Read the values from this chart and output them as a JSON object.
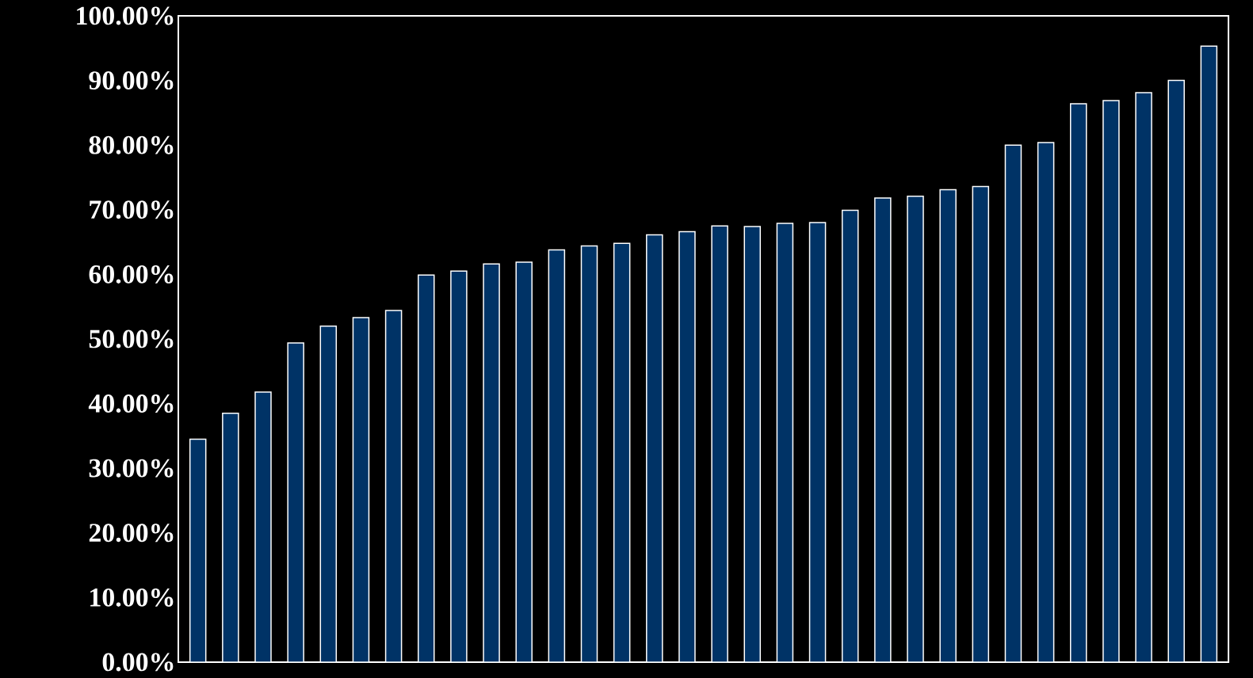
{
  "chart_data": {
    "type": "bar",
    "categories": [
      null,
      null,
      null,
      null,
      null,
      null,
      null,
      null,
      null,
      null,
      null,
      null,
      null,
      null,
      null,
      null,
      null,
      null,
      null,
      null,
      null,
      null,
      null,
      null,
      null,
      null,
      null,
      null,
      null,
      null,
      null,
      null
    ],
    "values": [
      34.5,
      38.5,
      41.8,
      49.4,
      52,
      53.3,
      54.4,
      59.9,
      60.5,
      61.6,
      61.9,
      63.8,
      64.4,
      64.8,
      66.1,
      66.6,
      67.5,
      67.4,
      67.9,
      68,
      69.9,
      71.8,
      72.1,
      73.1,
      73.6,
      80,
      80.4,
      86.4,
      86.9,
      88.1,
      90,
      95.3
    ],
    "color": "#003366",
    "ylim": [
      0,
      100
    ],
    "yticks": [
      {
        "value": 0,
        "label": "0.00%"
      },
      {
        "value": 10,
        "label": "10.00%"
      },
      {
        "value": 20,
        "label": "20.00%"
      },
      {
        "value": 30,
        "label": "30.00%"
      },
      {
        "value": 40,
        "label": "40.00%"
      },
      {
        "value": 50,
        "label": "50.00%"
      },
      {
        "value": 60,
        "label": "60.00%"
      },
      {
        "value": 70,
        "label": "70.00%"
      },
      {
        "value": 80,
        "label": "80.00%"
      },
      {
        "value": 90,
        "label": "90.00%"
      },
      {
        "value": 100,
        "label": "100.00%"
      }
    ],
    "tick_labels": "y",
    "grid": false
  }
}
